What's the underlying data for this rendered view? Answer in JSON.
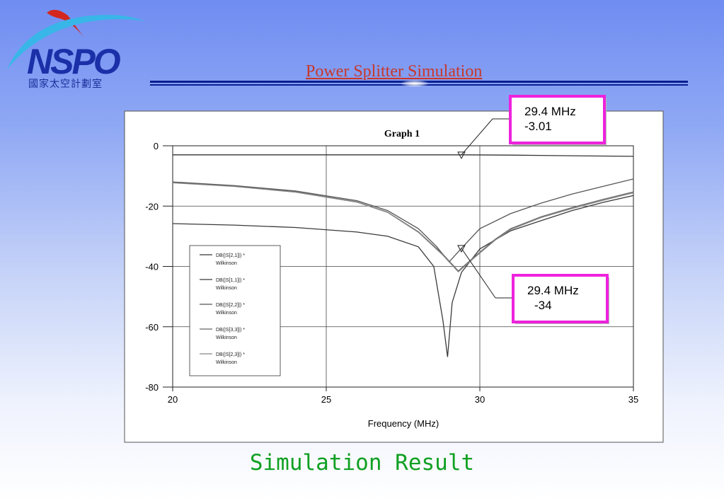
{
  "logo": {
    "text": "NSPO",
    "subtitle": "國家太空計劃室"
  },
  "slide_title": "Power Splitter Simulation",
  "footer": "Simulation Result",
  "colors": {
    "footer": "#10a023",
    "title": "#c8372a",
    "callout_border": "#ee22dd",
    "logo_blue": "#1b2fa8",
    "logo_red": "#d3271e"
  },
  "chart_data": {
    "type": "line",
    "title": "Graph 1",
    "xlabel": "Frequency (MHz)",
    "ylabel": "",
    "xlim": [
      20,
      35
    ],
    "ylim": [
      -80,
      0
    ],
    "x_ticks": [
      20,
      25,
      30,
      35
    ],
    "y_ticks": [
      0,
      -20,
      -40,
      -60,
      -80
    ],
    "grid": true,
    "legend_position": "left-middle",
    "series": [
      {
        "name": "DB(|S[2,1]|) *\nWilkinson",
        "color": "#333333",
        "x": [
          20,
          22,
          24,
          26,
          28,
          29.4,
          31,
          33,
          35
        ],
        "y": [
          -3.0,
          -3.0,
          -3.0,
          -3.0,
          -3.0,
          -3.01,
          -3.1,
          -3.3,
          -3.5
        ]
      },
      {
        "name": "DB(|S[1,1]|) *\nWilkinson",
        "color": "#3a3a3a",
        "x": [
          20,
          22,
          24,
          26,
          27,
          28,
          28.5,
          28.8,
          28.95,
          29.1,
          29.4,
          30,
          31,
          32,
          33,
          34,
          35
        ],
        "y": [
          -25.8,
          -26.3,
          -27.1,
          -28.6,
          -30.0,
          -33.5,
          -40.0,
          -58.0,
          -70.0,
          -52.0,
          -42.0,
          -34.2,
          -28.2,
          -24.8,
          -21.5,
          -18.8,
          -16.5
        ]
      },
      {
        "name": "DB(|S[2,2]|) *\nWilkinson",
        "color": "#555555",
        "x": [
          20,
          22,
          24,
          26,
          27,
          28,
          28.6,
          29.0,
          29.4,
          30,
          31,
          32,
          33,
          34,
          35
        ],
        "y": [
          -12.0,
          -13.2,
          -15.0,
          -18.2,
          -21.5,
          -27.5,
          -33.5,
          -38.5,
          -34.0,
          -27.5,
          -22.5,
          -19.0,
          -16.0,
          -13.5,
          -11.0
        ]
      },
      {
        "name": "DB(|S[3,3]|) *\nWilkinson",
        "color": "#666666",
        "x": [
          20,
          22,
          24,
          26,
          27,
          28,
          28.8,
          29.3,
          29.8,
          30.5,
          31,
          32,
          33,
          34,
          35
        ],
        "y": [
          -12.2,
          -13.4,
          -15.3,
          -18.6,
          -22.0,
          -28.5,
          -36.0,
          -41.5,
          -37.0,
          -31.0,
          -27.5,
          -23.5,
          -20.5,
          -17.8,
          -15.3
        ]
      },
      {
        "name": "DB(|S[2,3]|) *\nWilkinson",
        "color": "#888888",
        "x": [
          20,
          22,
          24,
          26,
          27,
          28,
          28.8,
          29.3,
          29.8,
          30.5,
          31,
          32,
          33,
          34,
          35
        ],
        "y": [
          -12.3,
          -13.5,
          -15.4,
          -18.7,
          -22.1,
          -28.7,
          -36.3,
          -41.8,
          -37.3,
          -31.3,
          -27.8,
          -23.8,
          -20.8,
          -18.1,
          -15.6
        ]
      }
    ],
    "annotations": [
      {
        "line1": "29.4 MHz",
        "line2": "-3.01",
        "x": 29.4,
        "y": -3.01
      },
      {
        "line1": "29.4 MHz",
        "line2": "-34",
        "x": 29.4,
        "y": -34
      }
    ]
  }
}
